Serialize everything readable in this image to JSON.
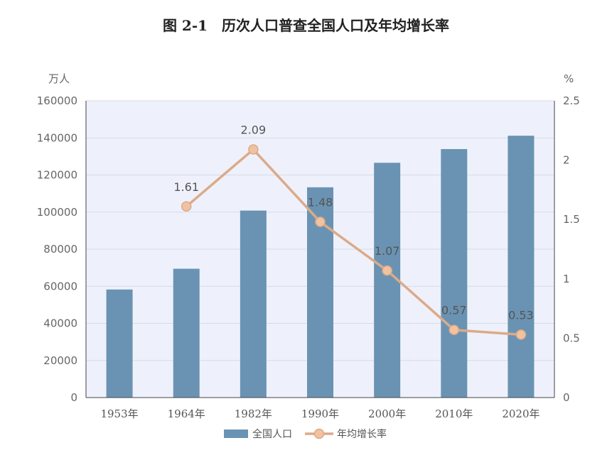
{
  "chart_data": {
    "type": "bar+line",
    "title": "图 2-1　历次人口普查全国人口及年均增长率",
    "categories": [
      "1953年",
      "1964年",
      "1982年",
      "1990年",
      "2000年",
      "2010年",
      "2020年"
    ],
    "series": [
      {
        "name": "全国人口",
        "type": "bar",
        "axis": "left",
        "values": [
          58260,
          69458,
          100818,
          113368,
          126583,
          133972,
          141178
        ]
      },
      {
        "name": "年均增长率",
        "type": "line",
        "axis": "right",
        "values": [
          null,
          1.61,
          2.09,
          1.48,
          1.07,
          0.57,
          0.53
        ],
        "labels": [
          "",
          "1.61",
          "2.09",
          "1.48",
          "1.07",
          "0.57",
          "0.53"
        ]
      }
    ],
    "y_left": {
      "unit": "万人",
      "range": [
        0,
        160000
      ],
      "ticks": [
        "0",
        "20000",
        "40000",
        "60000",
        "80000",
        "100000",
        "120000",
        "140000",
        "160000"
      ]
    },
    "y_right": {
      "unit": "%",
      "range": [
        0,
        2.5
      ],
      "ticks": [
        "0",
        "0.5",
        "1",
        "1.5",
        "2",
        "2.5"
      ]
    },
    "legend": [
      "全国人口",
      "年均增长率"
    ],
    "legend_position": "bottom",
    "grid": true,
    "colors": {
      "bar": "#6a93b3",
      "line": "#dcaa88",
      "marker_fill": "#f0c2a0",
      "plot_bg": "#eef1fb",
      "grid": "#d6dbe8",
      "axis": "#444444"
    }
  }
}
